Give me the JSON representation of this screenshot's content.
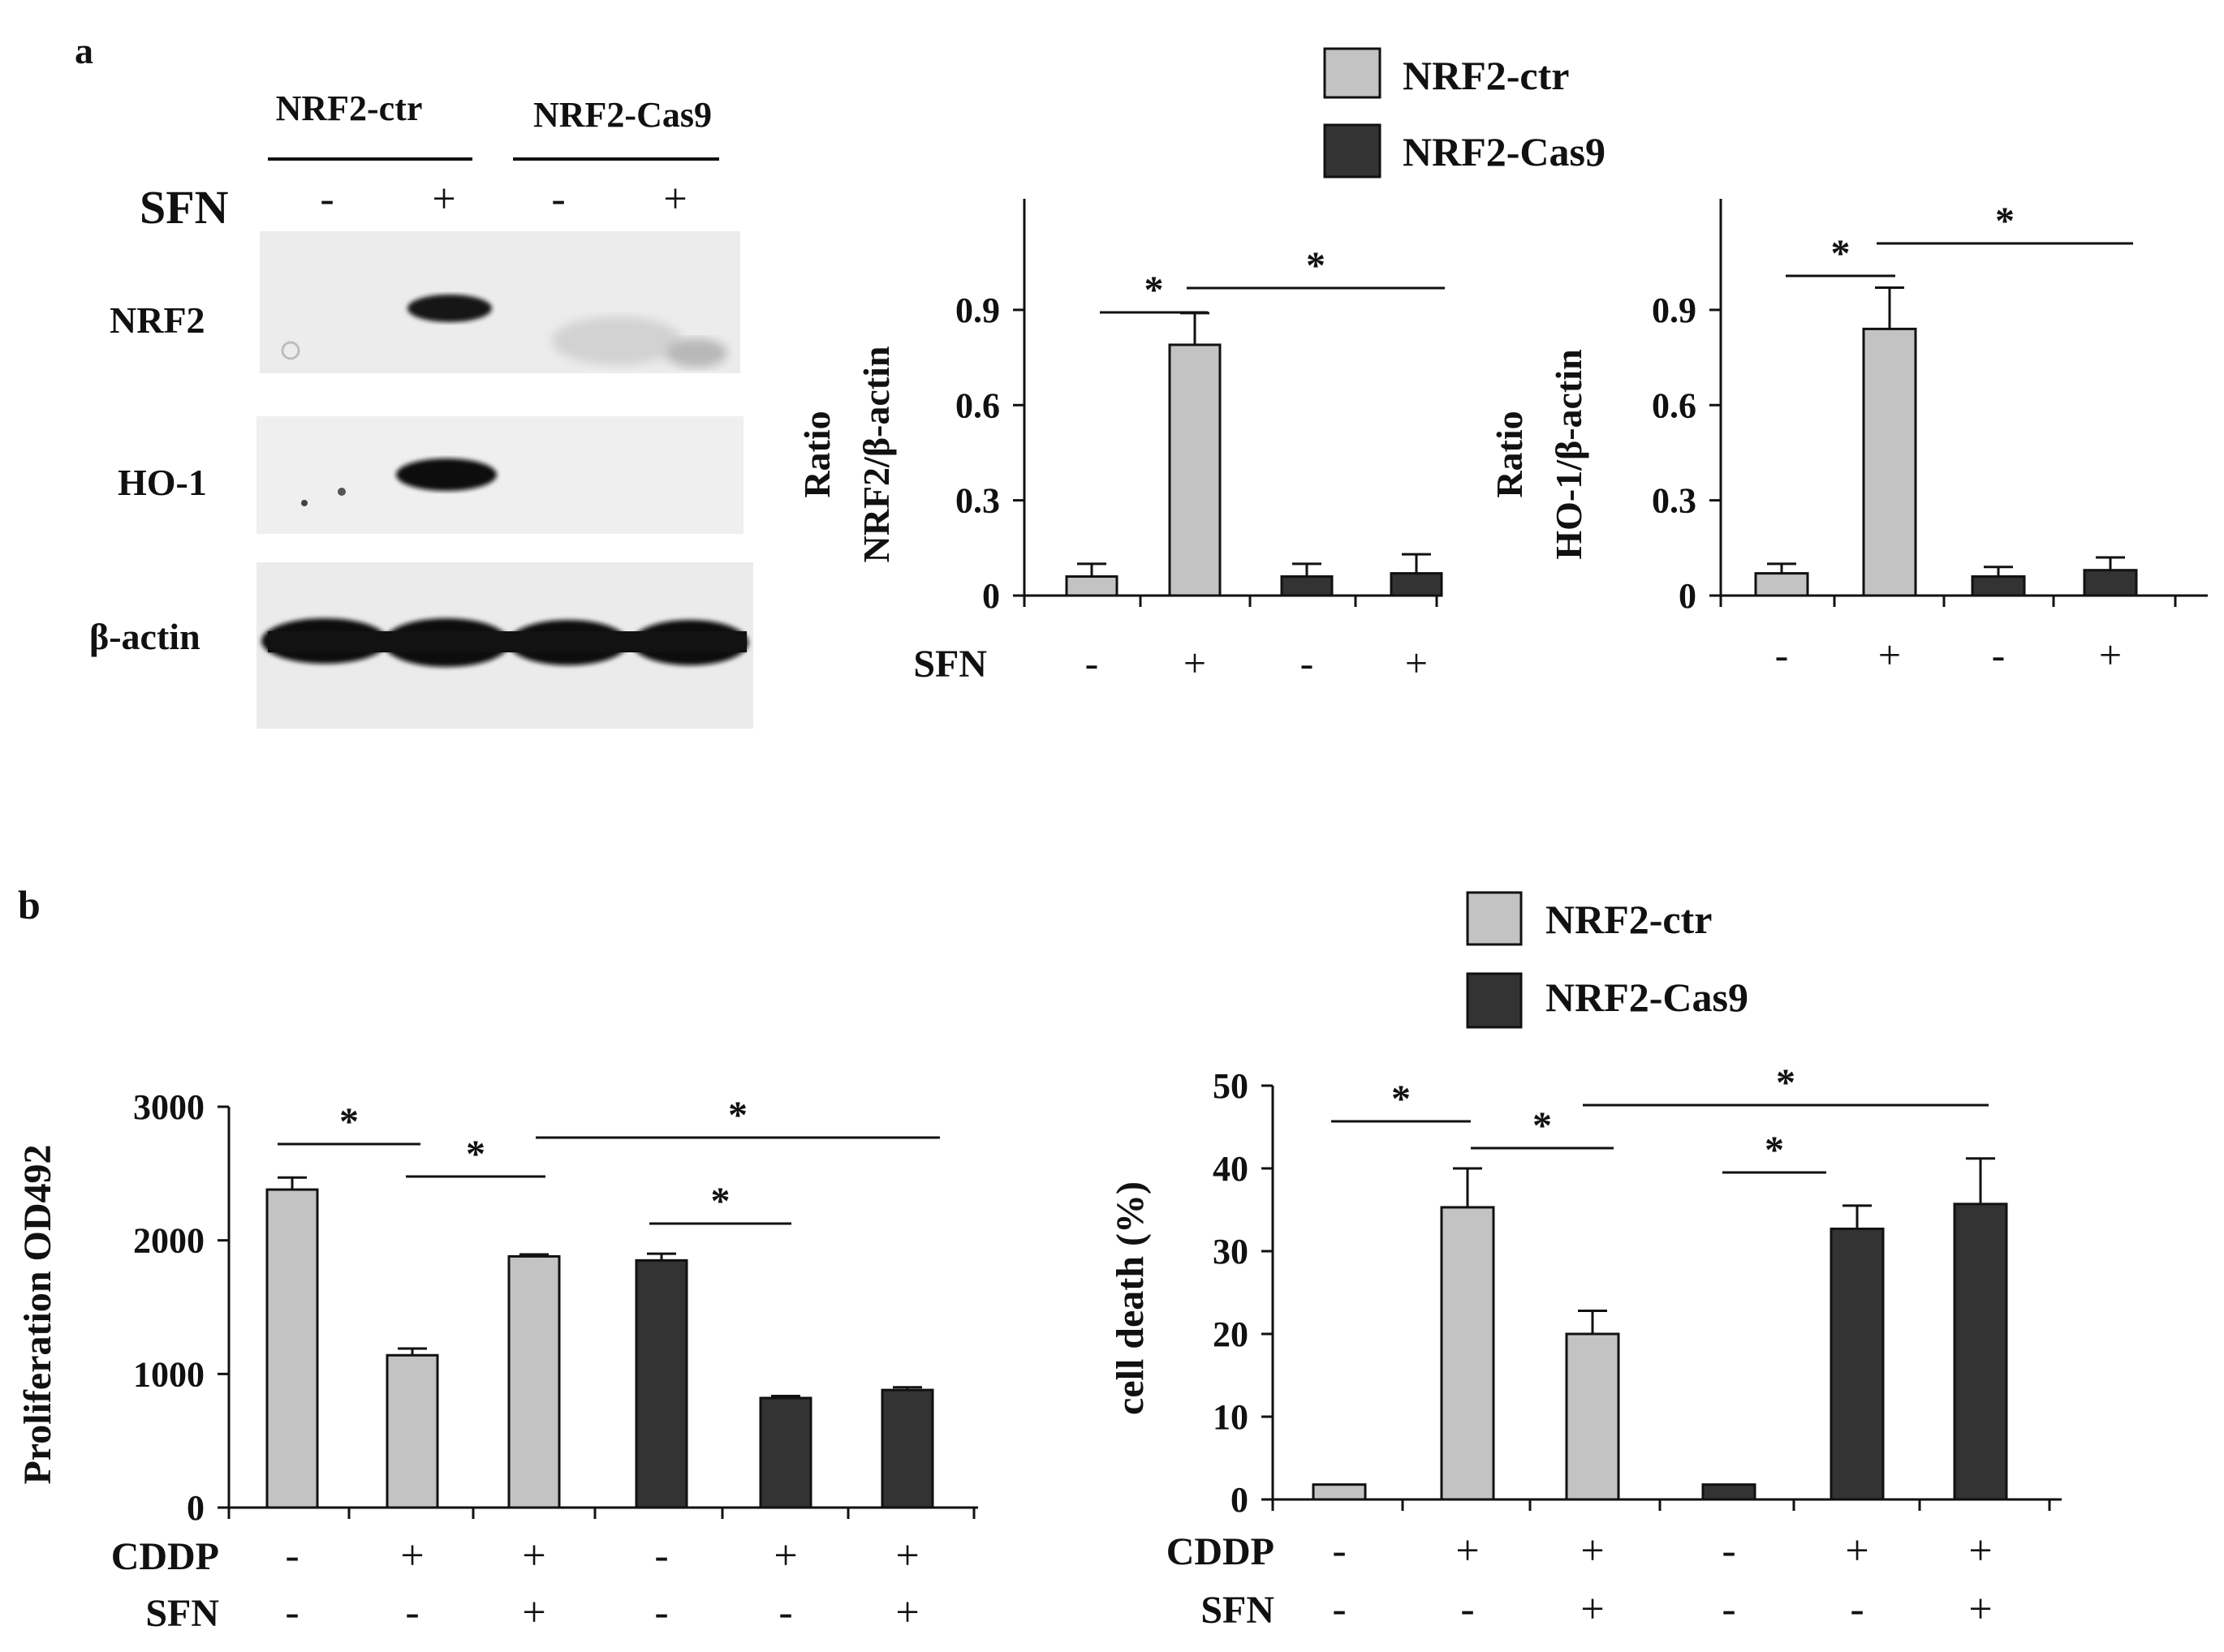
{
  "panels": {
    "a": {
      "label": "a",
      "blot": {
        "groups": [
          "NRF2-ctr",
          "NRF2-Cas9"
        ],
        "sfn_label": "SFN",
        "sfn_signs": [
          "-",
          "+",
          "-",
          "+"
        ],
        "rows": [
          "NRF2",
          "HO-1",
          "β-actin"
        ]
      },
      "legend": [
        {
          "name": "NRF2-ctr",
          "color": "#c3c3c3"
        },
        {
          "name": "NRF2-Cas9",
          "color": "#333333"
        }
      ]
    },
    "b": {
      "label": "b",
      "legend": [
        {
          "name": "NRF2-ctr",
          "color": "#c3c3c3"
        },
        {
          "name": "NRF2-Cas9",
          "color": "#333333"
        }
      ]
    }
  },
  "colors": {
    "ctr": "#c3c3c3",
    "cas9": "#333333",
    "ink": "#111111"
  },
  "chart_data": [
    {
      "id": "a-nrf2",
      "type": "bar",
      "ylabel": [
        "Ratio",
        "NRF2/β-actin"
      ],
      "yticks": [
        0,
        0.3,
        0.6,
        0.9
      ],
      "ytick_labels": [
        "0",
        "0.3",
        "0.6",
        "0.9"
      ],
      "ylim": [
        0,
        1.25
      ],
      "values": [
        0.06,
        0.79,
        0.06,
        0.07
      ],
      "errors": [
        0.04,
        0.1,
        0.04,
        0.06
      ],
      "groups": [
        "ctr",
        "ctr",
        "cas9",
        "cas9"
      ],
      "row_labels": [
        "SFN"
      ],
      "rows": [
        [
          "-",
          "+",
          "-",
          "+"
        ]
      ],
      "significance": [
        {
          "from": 0,
          "to": 1,
          "label": "*"
        },
        {
          "from": 1,
          "to": 3,
          "label": "*"
        }
      ]
    },
    {
      "id": "a-ho1",
      "type": "bar",
      "ylabel": [
        "Ratio",
        "HO-1/β-actin"
      ],
      "yticks": [
        0,
        0.3,
        0.6,
        0.9
      ],
      "ytick_labels": [
        "0",
        "0.3",
        "0.6",
        "0.9"
      ],
      "ylim": [
        0,
        1.25
      ],
      "values": [
        0.07,
        0.84,
        0.06,
        0.08
      ],
      "errors": [
        0.03,
        0.13,
        0.03,
        0.04
      ],
      "groups": [
        "ctr",
        "ctr",
        "cas9",
        "cas9"
      ],
      "row_labels": [],
      "rows": [
        [
          "-",
          "+",
          "-",
          "+"
        ]
      ],
      "significance": [
        {
          "from": 0,
          "to": 1,
          "label": "*"
        },
        {
          "from": 1,
          "to": 3,
          "label": "*"
        }
      ]
    },
    {
      "id": "b-prolif",
      "type": "bar",
      "ylabel": [
        "Proliferation  OD492"
      ],
      "yticks": [
        0,
        1000,
        2000,
        3000
      ],
      "ytick_labels": [
        "0",
        "1000",
        "2000",
        "3000"
      ],
      "ylim": [
        0,
        3000
      ],
      "values": [
        2380,
        1140,
        1880,
        1850,
        820,
        880
      ],
      "errors": [
        90,
        50,
        15,
        50,
        15,
        20
      ],
      "groups": [
        "ctr",
        "ctr",
        "ctr",
        "cas9",
        "cas9",
        "cas9"
      ],
      "row_labels": [
        "CDDP",
        "SFN"
      ],
      "rows": [
        [
          "-",
          "+",
          "+",
          "-",
          "+",
          "+"
        ],
        [
          "-",
          "-",
          "+",
          "-",
          "-",
          "+"
        ]
      ],
      "significance": [
        {
          "from": 0,
          "to": 1,
          "label": "*"
        },
        {
          "from": 1,
          "to": 2,
          "label": "*"
        },
        {
          "from": 2,
          "to": 5,
          "label": "*"
        },
        {
          "from": 3,
          "to": 4,
          "label": "*"
        }
      ]
    },
    {
      "id": "b-death",
      "type": "bar",
      "ylabel": [
        "cell death  (%)"
      ],
      "yticks": [
        0,
        10,
        20,
        30,
        40,
        50
      ],
      "ytick_labels": [
        "0",
        "10",
        "20",
        "30",
        "40",
        "50"
      ],
      "ylim": [
        0,
        50
      ],
      "values": [
        1.8,
        35.3,
        20,
        1.8,
        32.7,
        35.7
      ],
      "errors": [
        0,
        4.7,
        2.8,
        0,
        2.8,
        5.5
      ],
      "groups": [
        "ctr",
        "ctr",
        "ctr",
        "cas9",
        "cas9",
        "cas9"
      ],
      "row_labels": [
        "CDDP",
        "SFN"
      ],
      "rows": [
        [
          "-",
          "+",
          "+",
          "-",
          "+",
          "+"
        ],
        [
          "-",
          "-",
          "+",
          "-",
          "-",
          "+"
        ]
      ],
      "significance": [
        {
          "from": 0,
          "to": 1,
          "label": "*"
        },
        {
          "from": 1,
          "to": 2,
          "label": "*"
        },
        {
          "from": 2,
          "to": 5,
          "label": "*"
        },
        {
          "from": 3,
          "to": 4,
          "label": "*"
        }
      ]
    }
  ]
}
